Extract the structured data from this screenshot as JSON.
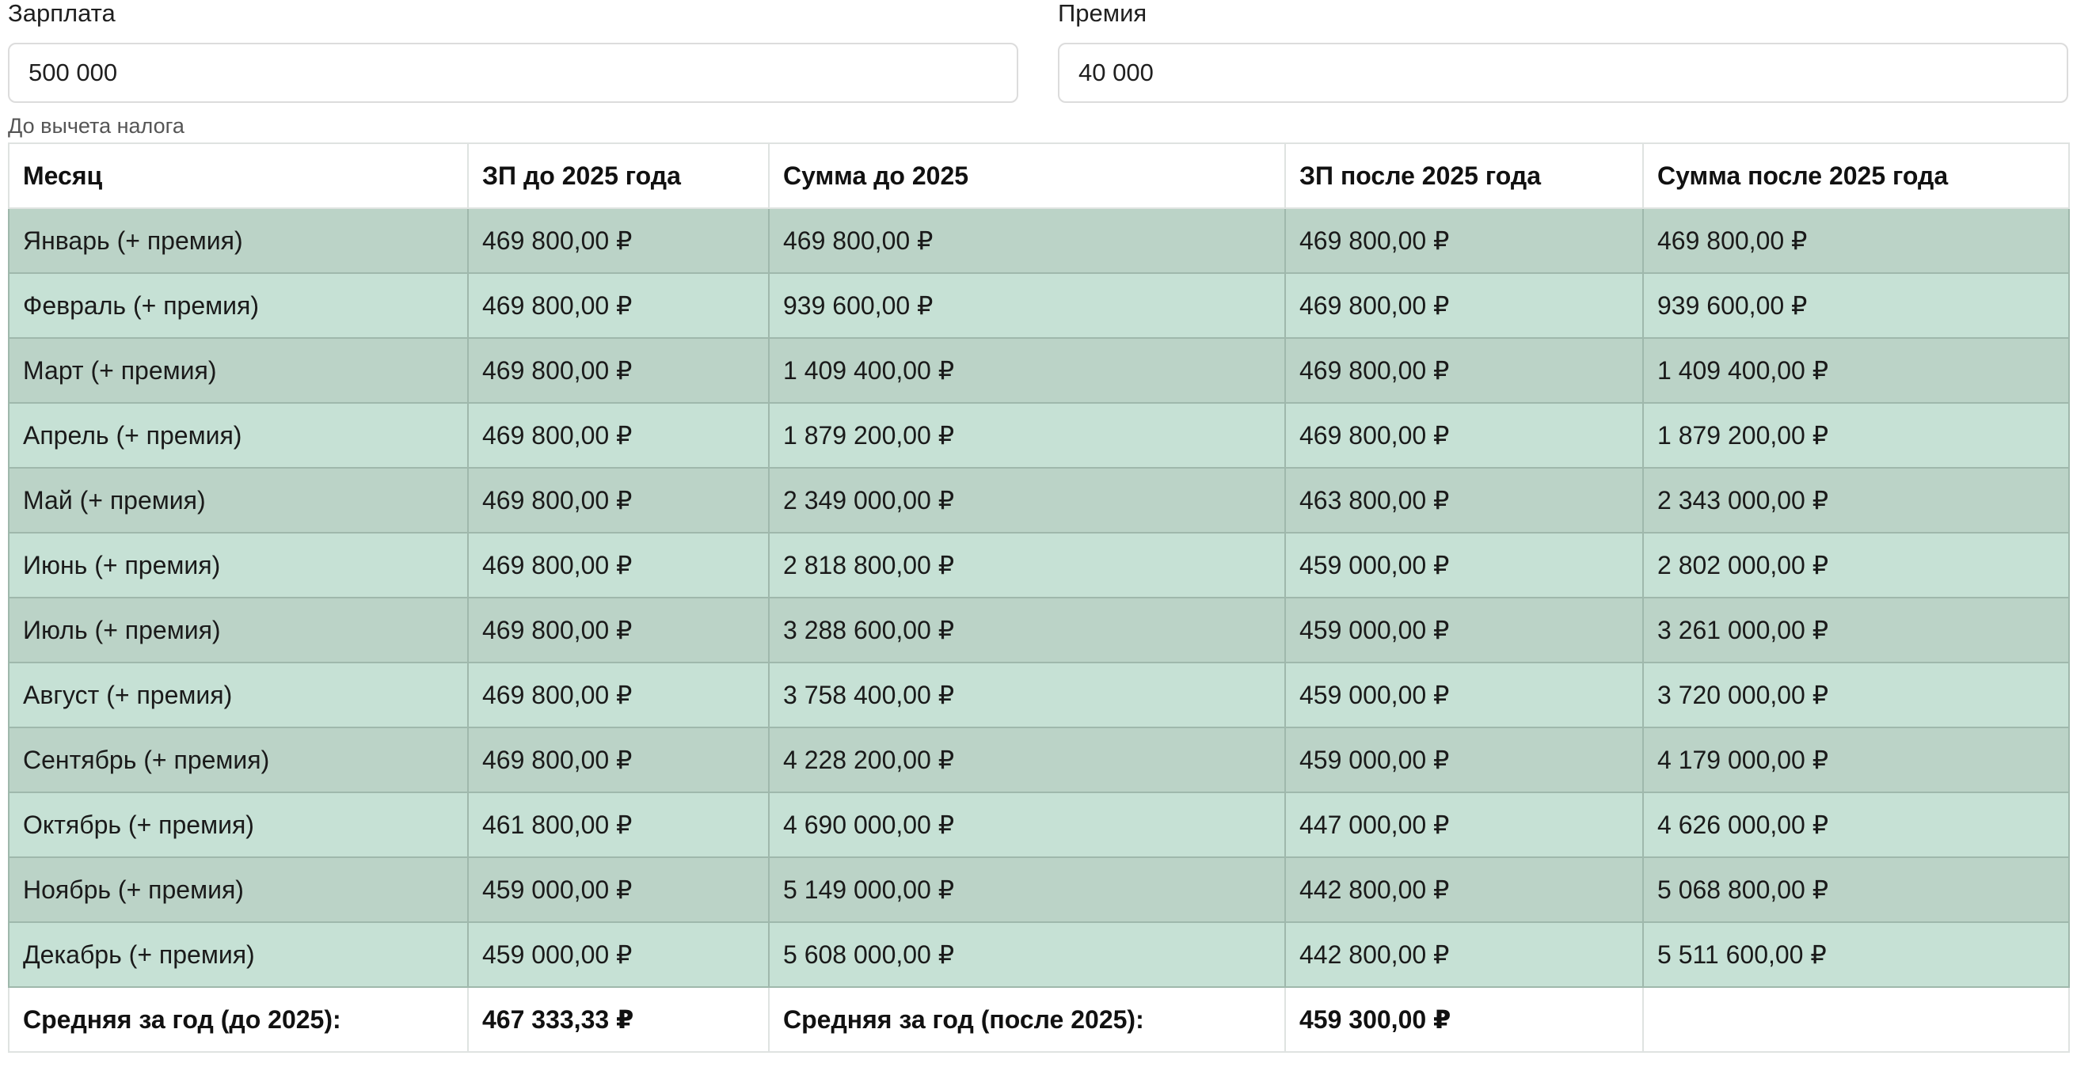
{
  "form": {
    "salary_label": "Зарплата",
    "salary_value": "500 000",
    "bonus_label": "Премия",
    "bonus_value": "40 000",
    "hint": "До вычета налога"
  },
  "table": {
    "headers": [
      "Месяц",
      "ЗП до 2025 года",
      "Сумма до 2025",
      "ЗП после 2025 года",
      "Сумма после 2025 года"
    ],
    "rows": [
      [
        "Январь (+ премия)",
        "469 800,00 ₽",
        "469 800,00 ₽",
        "469 800,00 ₽",
        "469 800,00 ₽"
      ],
      [
        "Февраль (+ премия)",
        "469 800,00 ₽",
        "939 600,00 ₽",
        "469 800,00 ₽",
        "939 600,00 ₽"
      ],
      [
        "Март (+ премия)",
        "469 800,00 ₽",
        "1 409 400,00 ₽",
        "469 800,00 ₽",
        "1 409 400,00 ₽"
      ],
      [
        "Апрель (+ премия)",
        "469 800,00 ₽",
        "1 879 200,00 ₽",
        "469 800,00 ₽",
        "1 879 200,00 ₽"
      ],
      [
        "Май (+ премия)",
        "469 800,00 ₽",
        "2 349 000,00 ₽",
        "463 800,00 ₽",
        "2 343 000,00 ₽"
      ],
      [
        "Июнь (+ премия)",
        "469 800,00 ₽",
        "2 818 800,00 ₽",
        "459 000,00 ₽",
        "2 802 000,00 ₽"
      ],
      [
        "Июль (+ премия)",
        "469 800,00 ₽",
        "3 288 600,00 ₽",
        "459 000,00 ₽",
        "3 261 000,00 ₽"
      ],
      [
        "Август (+ премия)",
        "469 800,00 ₽",
        "3 758 400,00 ₽",
        "459 000,00 ₽",
        "3 720 000,00 ₽"
      ],
      [
        "Сентябрь (+ премия)",
        "469 800,00 ₽",
        "4 228 200,00 ₽",
        "459 000,00 ₽",
        "4 179 000,00 ₽"
      ],
      [
        "Октябрь (+ премия)",
        "461 800,00 ₽",
        "4 690 000,00 ₽",
        "447 000,00 ₽",
        "4 626 000,00 ₽"
      ],
      [
        "Ноябрь (+ премия)",
        "459 000,00 ₽",
        "5 149 000,00 ₽",
        "442 800,00 ₽",
        "5 068 800,00 ₽"
      ],
      [
        "Декабрь (+ премия)",
        "459 000,00 ₽",
        "5 608 000,00 ₽",
        "442 800,00 ₽",
        "5 511 600,00 ₽"
      ]
    ],
    "footer": {
      "avg_before_label": "Средняя за год (до 2025):",
      "avg_before_value": "467 333,33 ₽",
      "avg_after_label": "Средняя за год (после 2025):",
      "avg_after_value": "459 300,00 ₽",
      "empty": ""
    }
  },
  "colors": {
    "row_odd": "#bbd3c7",
    "row_even": "#c6e1d5",
    "row_border": "#9fb8ac"
  }
}
